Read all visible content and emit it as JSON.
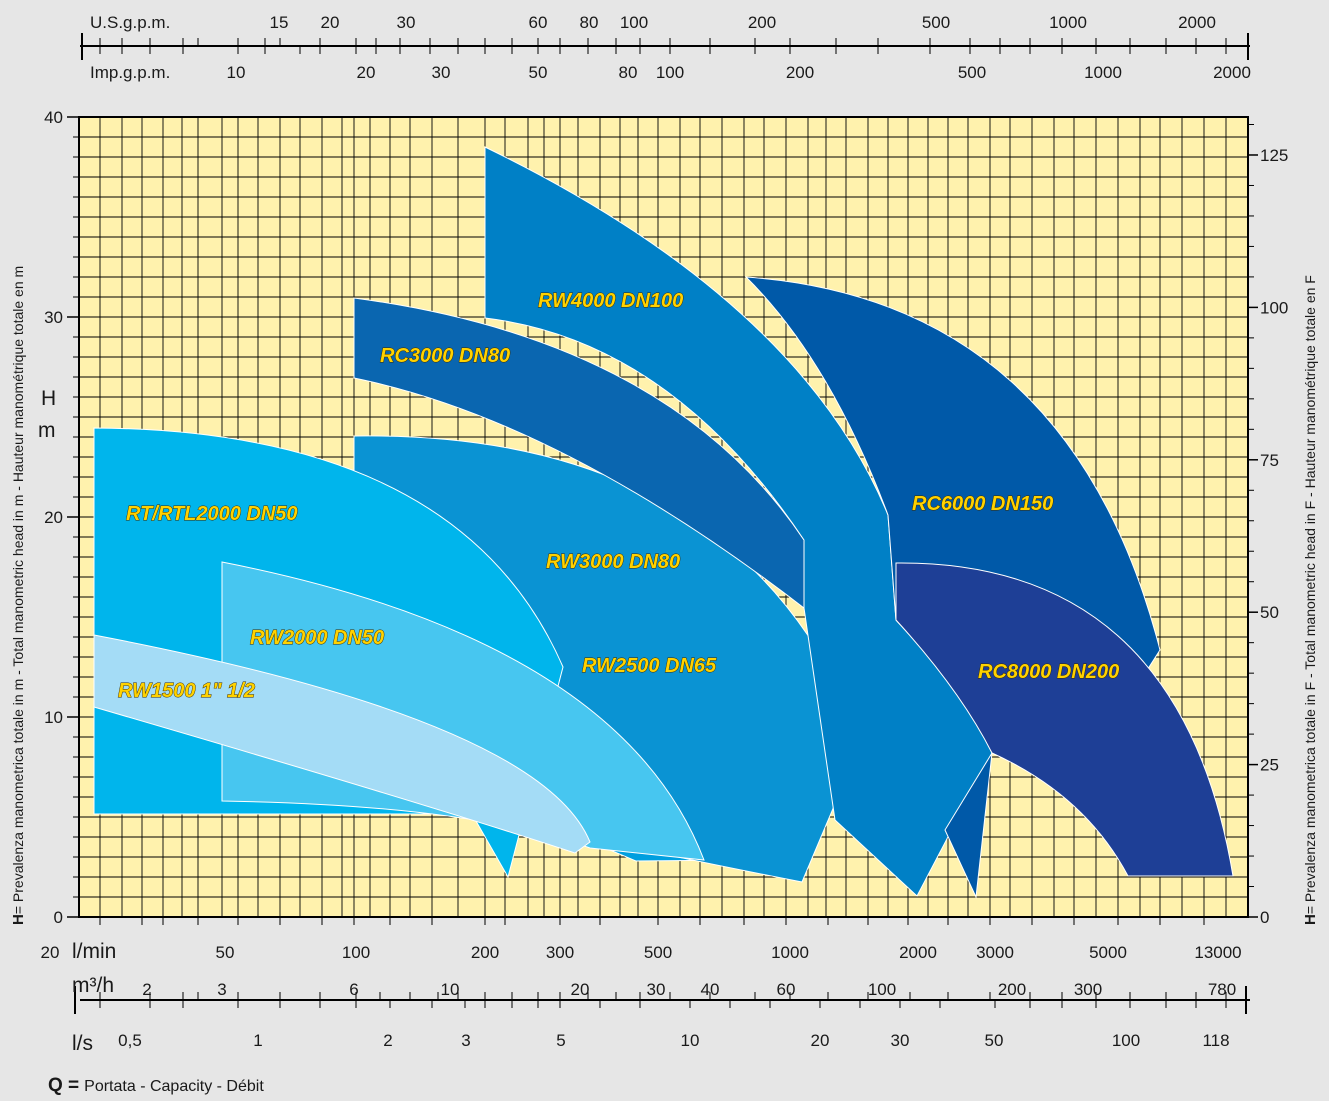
{
  "chart_data": {
    "type": "area",
    "description": "Pump performance selection chart (log-scale capacity vs head)",
    "title": "",
    "y_axis": {
      "label_short": "H",
      "label_unit": "m",
      "ticks": [
        "0",
        "10",
        "20",
        "30",
        "40"
      ],
      "range": [
        0,
        40
      ]
    },
    "y_axis_right": {
      "ticks": [
        "0",
        "25",
        "50",
        "75",
        "100",
        "125"
      ],
      "label_bold": "H",
      "label_text": "= Prevalenza manometrica totale in F  - Total manometric head in F  - Hauteur manométrique totale en F"
    },
    "y_axis_left_side_text": {
      "bold": "H",
      "text": "= Prevalenza manometrica totale in m - Total manometric head in m - Hauteur manométrique totale en m"
    },
    "top_scales": [
      {
        "name": "U.S.g.p.m.",
        "labels": [
          "15",
          "20",
          "30",
          "60",
          "80",
          "100",
          "200",
          "500",
          "1000",
          "2000"
        ]
      },
      {
        "name": "Imp.g.p.m.",
        "labels": [
          "10",
          "20",
          "30",
          "50",
          "80",
          "100",
          "200",
          "500",
          "1000",
          "2000"
        ]
      }
    ],
    "bottom_scales": [
      {
        "name": "l/min",
        "labels": [
          "20",
          "50",
          "100",
          "200",
          "300",
          "500",
          "1000",
          "2000",
          "3000",
          "5000",
          "13000"
        ]
      },
      {
        "name": "m³/h",
        "labels": [
          "2",
          "3",
          "6",
          "10",
          "20",
          "30",
          "40",
          "60",
          "100",
          "200",
          "300",
          "780"
        ]
      },
      {
        "name": "l/s",
        "labels": [
          "0,5",
          "1",
          "2",
          "3",
          "5",
          "10",
          "20",
          "30",
          "50",
          "100",
          "118"
        ]
      }
    ],
    "x_caption": {
      "bold": "Q =",
      "text": "Portata - Capacity - Débit"
    },
    "series": [
      {
        "name": "RT/RTL2000 DN50",
        "color": "#00b5ec"
      },
      {
        "name": "RW2000 DN50",
        "color": "#47c6f0"
      },
      {
        "name": "RW1500 1\" 1/2",
        "color": "#a4dcf6"
      },
      {
        "name": "RW2500 DN65",
        "color": "#009fdf"
      },
      {
        "name": "RW3000 DN80",
        "color": "#0a93d3"
      },
      {
        "name": "RC3000 DN80",
        "color": "#0a66b0"
      },
      {
        "name": "RW4000 DN100",
        "color": "#0080c6"
      },
      {
        "name": "RC6000 DN150",
        "color": "#0059a8"
      },
      {
        "name": "RC8000 DN200",
        "color": "#1e3f96"
      }
    ],
    "grid": true,
    "background_color": "#fff2ad"
  }
}
